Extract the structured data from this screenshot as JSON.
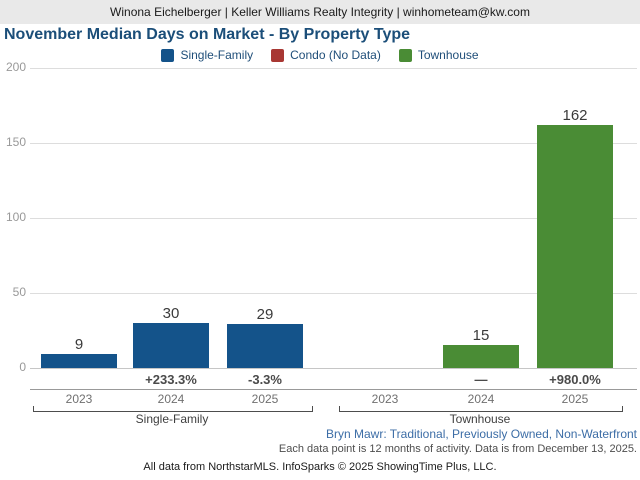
{
  "header": {
    "contact": "Winona Eichelberger | Keller Williams Realty Integrity | winhometeam@kw.com"
  },
  "title": "November Median Days on Market - By Property Type",
  "legend": [
    {
      "label": "Single-Family",
      "color": "#14538a"
    },
    {
      "label": "Condo (No Data)",
      "color": "#a83733"
    },
    {
      "label": "Townhouse",
      "color": "#4a8c35"
    }
  ],
  "chart_data": {
    "type": "bar",
    "title": "November Median Days on Market - By Property Type",
    "ylabel": "Median Days on Market",
    "ylim": [
      0,
      200
    ],
    "yticks": [
      0,
      50,
      100,
      150,
      200
    ],
    "grid": true,
    "legend_position": "top",
    "categories": [
      "2023",
      "2024",
      "2025"
    ],
    "groups": [
      {
        "label": "Single-Family",
        "color": "#14538a",
        "bars": [
          {
            "year": "2023",
            "value": 9,
            "change": ""
          },
          {
            "year": "2024",
            "value": 30,
            "change": "+233.3%"
          },
          {
            "year": "2025",
            "value": 29,
            "change": "-3.3%"
          }
        ]
      },
      {
        "label": "Townhouse",
        "color": "#4a8c35",
        "bars": [
          {
            "year": "2023",
            "value": null,
            "change": ""
          },
          {
            "year": "2024",
            "value": 15,
            "change": "—"
          },
          {
            "year": "2025",
            "value": 162,
            "change": "+980.0%"
          }
        ]
      }
    ],
    "no_data_series": "Condo"
  },
  "footer": {
    "filter_line": "Bryn Mawr: Traditional, Previously Owned, Non-Waterfront",
    "data_note": "Each data point is 12 months of activity. Data is from December 13, 2025.",
    "attribution": "All data from NorthstarMLS. InfoSparks © 2025 ShowingTime Plus, LLC."
  }
}
